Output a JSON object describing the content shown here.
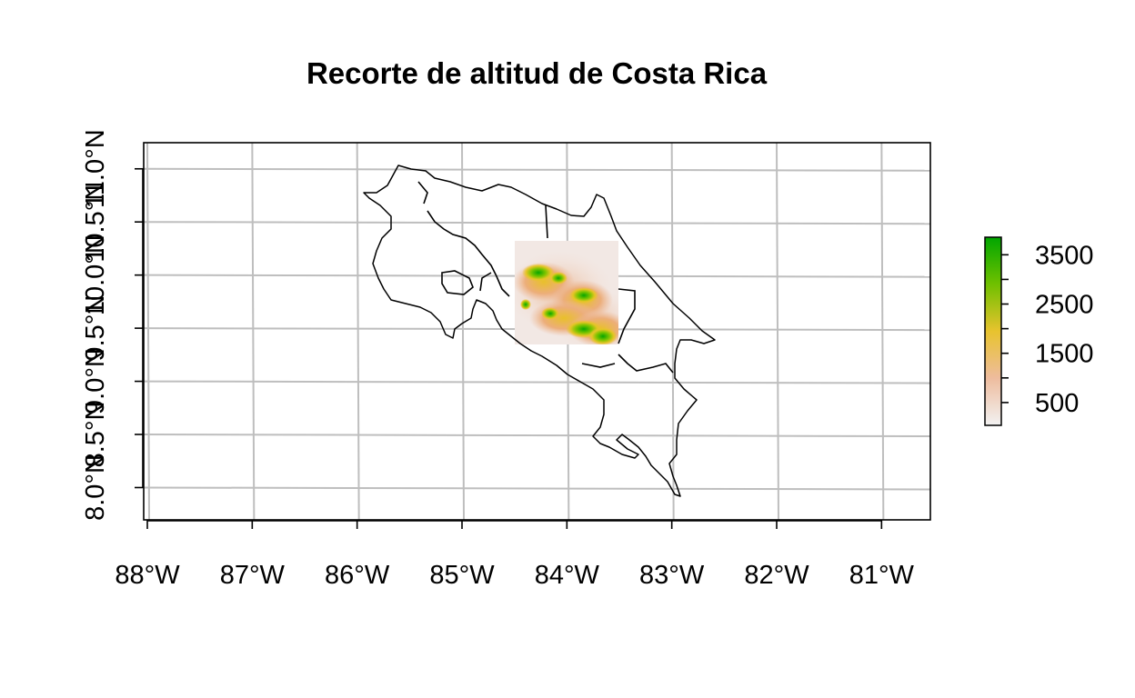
{
  "map": {
    "title": "Recorte de altitud de Costa Rica",
    "x_ticks": [
      "88°W",
      "87°W",
      "86°W",
      "85°W",
      "84°W",
      "83°W",
      "82°W",
      "81°W"
    ],
    "y_ticks": [
      "8.0°N",
      "8.5°N",
      "9.0°N",
      "9.5°N",
      "10.0°N",
      "10.5°N",
      "11.0°N"
    ],
    "legend": {
      "labels": [
        "3500",
        "2500",
        "1500",
        "500"
      ],
      "colors": [
        "#f2f2f2",
        "#eebc9e",
        "#e8c32e",
        "#70c000",
        "#00a600"
      ],
      "min": 0,
      "max": 3820
    }
  },
  "chart_data": {
    "type": "heatmap",
    "title": "Recorte de altitud de Costa Rica",
    "xlim": [
      -88.0,
      -80.5
    ],
    "ylim": [
      7.85,
      11.4
    ],
    "grid": true,
    "legend_position": "right",
    "raster_extent": {
      "lon": [
        -84.5,
        -83.5
      ],
      "lat": [
        9.5,
        10.5
      ]
    },
    "color_scale": {
      "breaks": [
        500,
        1500,
        2500,
        3500
      ],
      "range": [
        0,
        3820
      ]
    }
  }
}
